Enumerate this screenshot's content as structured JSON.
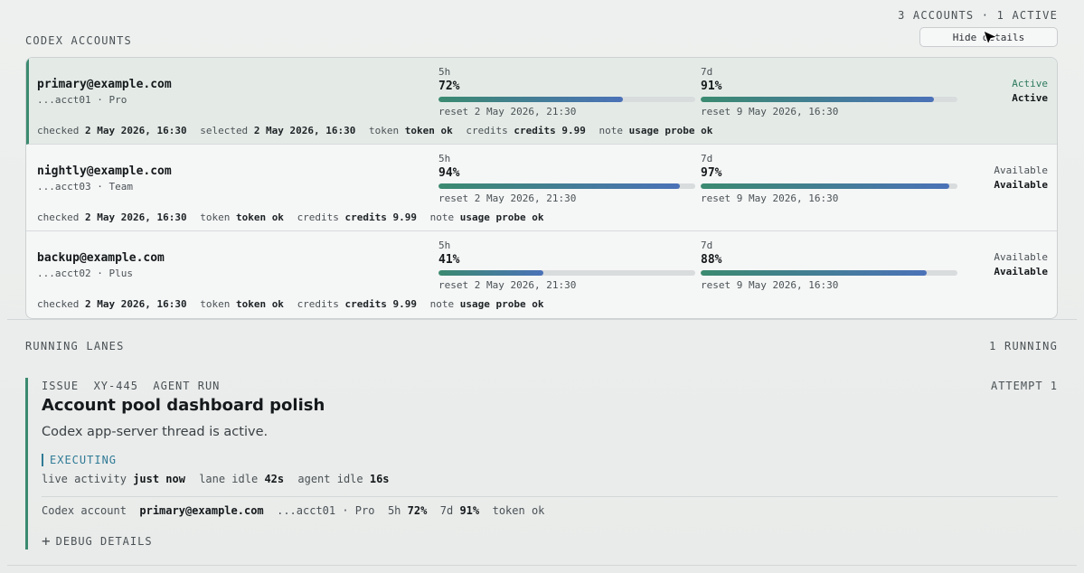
{
  "accounts_section": {
    "title": "CODEX ACCOUNTS",
    "summary": "3 ACCOUNTS · 1 ACTIVE",
    "hide_details_label": "Hide details"
  },
  "accounts": [
    {
      "email": "primary@example.com",
      "sub": "...acct01 · Pro",
      "active": true,
      "five_h": {
        "label": "5h",
        "pct": "72%",
        "fraction": 0.72,
        "reset": "reset 2 May 2026, 21:30"
      },
      "seven_d": {
        "label": "7d",
        "pct": "91%",
        "fraction": 0.91,
        "reset": "reset 9 May 2026, 16:30"
      },
      "status_top": "Active",
      "status_bottom": "Active",
      "meta": {
        "checked_label": "checked",
        "checked_value": "2 May 2026, 16:30",
        "selected_label": "selected",
        "selected_value": "2 May 2026, 16:30",
        "token_label": "token",
        "token_value": "token ok",
        "credits_label": "credits",
        "credits_value": "credits 9.99",
        "note_label": "note",
        "note_value": "usage probe ok"
      }
    },
    {
      "email": "nightly@example.com",
      "sub": "...acct03 · Team",
      "active": false,
      "five_h": {
        "label": "5h",
        "pct": "94%",
        "fraction": 0.94,
        "reset": "reset 2 May 2026, 21:30"
      },
      "seven_d": {
        "label": "7d",
        "pct": "97%",
        "fraction": 0.97,
        "reset": "reset 9 May 2026, 16:30"
      },
      "status_top": "Available",
      "status_bottom": "Available",
      "meta": {
        "checked_label": "checked",
        "checked_value": "2 May 2026, 16:30",
        "token_label": "token",
        "token_value": "token ok",
        "credits_label": "credits",
        "credits_value": "credits 9.99",
        "note_label": "note",
        "note_value": "usage probe ok"
      }
    },
    {
      "email": "backup@example.com",
      "sub": "...acct02 · Plus",
      "active": false,
      "five_h": {
        "label": "5h",
        "pct": "41%",
        "fraction": 0.41,
        "reset": "reset 2 May 2026, 21:30"
      },
      "seven_d": {
        "label": "7d",
        "pct": "88%",
        "fraction": 0.88,
        "reset": "reset 9 May 2026, 16:30"
      },
      "status_top": "Available",
      "status_bottom": "Available",
      "meta": {
        "checked_label": "checked",
        "checked_value": "2 May 2026, 16:30",
        "token_label": "token",
        "token_value": "token ok",
        "credits_label": "credits",
        "credits_value": "credits 9.99",
        "note_label": "note",
        "note_value": "usage probe ok"
      }
    }
  ],
  "lanes_section": {
    "title": "RUNNING LANES",
    "summary": "1 RUNNING"
  },
  "lane": {
    "kicker": "ISSUE  XY-445  AGENT RUN",
    "attempt": "ATTEMPT 1",
    "title": "Account pool dashboard polish",
    "description": "Codex app-server thread is active.",
    "state": "EXECUTING",
    "activity": {
      "live_label": "live activity",
      "live_value": "just now",
      "lane_idle_label": "lane idle",
      "lane_idle_value": "42s",
      "agent_idle_label": "agent idle",
      "agent_idle_value": "16s"
    },
    "account": {
      "label": "Codex account",
      "email": "primary@example.com",
      "sub": "...acct01 · Pro",
      "five_h_label": "5h",
      "five_h_value": "72%",
      "seven_d_label": "7d",
      "seven_d_value": "91%",
      "token": "token ok"
    },
    "debug_label": "DEBUG DETAILS"
  },
  "colors": {
    "accent_green": "#3b8a70",
    "accent_blue": "#4b72b8",
    "executing": "#2f7a96"
  },
  "icons": {
    "plus": "plus-icon",
    "cursor": "pointer-cursor-icon"
  }
}
